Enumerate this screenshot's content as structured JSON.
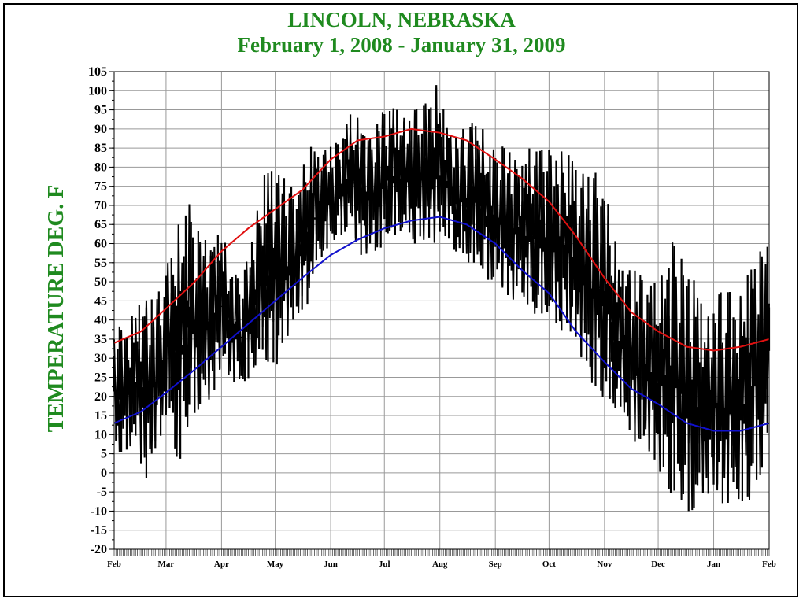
{
  "title_line1": "LINCOLN, NEBRASKA",
  "title_line2": "February 1, 2008 - January 31,  2009",
  "colors": {
    "title": "#1f8a1f",
    "max_normal": "#e01010",
    "min_normal": "#1010cc",
    "daily": "#000000",
    "grid": "#999999"
  },
  "chart_data": {
    "type": "line",
    "title": "LINCOLN, NEBRASKA",
    "subtitle": "February 1, 2008 - January 31,  2009",
    "ylabel": "TEMPERATURE DEG. F",
    "xlabel": "",
    "ylim": [
      -20,
      105
    ],
    "yticks": [
      -20,
      -15,
      -10,
      -5,
      0,
      5,
      10,
      15,
      20,
      25,
      30,
      35,
      40,
      45,
      50,
      55,
      60,
      65,
      70,
      75,
      80,
      85,
      90,
      95,
      100,
      105
    ],
    "xlim": [
      0,
      366
    ],
    "month_ticks": [
      {
        "label": "Feb",
        "day": 0
      },
      {
        "label": "Mar",
        "day": 29
      },
      {
        "label": "Apr",
        "day": 60
      },
      {
        "label": "May",
        "day": 90
      },
      {
        "label": "Jun",
        "day": 121
      },
      {
        "label": "Jul",
        "day": 151
      },
      {
        "label": "Aug",
        "day": 182
      },
      {
        "label": "Sep",
        "day": 213
      },
      {
        "label": "Oct",
        "day": 243
      },
      {
        "label": "Nov",
        "day": 274
      },
      {
        "label": "Dec",
        "day": 304
      },
      {
        "label": "Jan",
        "day": 335
      },
      {
        "label": "Feb",
        "day": 366
      }
    ],
    "grid": true,
    "series": [
      {
        "key": "max_normal",
        "x": [
          0,
          15,
          29,
          45,
          60,
          75,
          90,
          105,
          121,
          136,
          151,
          166,
          182,
          197,
          213,
          228,
          243,
          258,
          274,
          289,
          304,
          320,
          335,
          350,
          366
        ],
        "values": [
          34,
          37,
          43,
          50,
          58,
          64,
          69,
          74,
          82,
          87,
          88,
          90,
          89,
          87,
          82,
          77,
          71,
          62,
          51,
          42,
          37,
          33,
          32,
          33,
          35
        ]
      },
      {
        "key": "min_normal",
        "x": [
          0,
          15,
          29,
          45,
          60,
          75,
          90,
          105,
          121,
          136,
          151,
          166,
          182,
          197,
          213,
          228,
          243,
          258,
          274,
          289,
          304,
          320,
          335,
          350,
          366
        ],
        "values": [
          13,
          16,
          21,
          27,
          33,
          39,
          45,
          51,
          57,
          61,
          64,
          66,
          67,
          65,
          60,
          53,
          47,
          37,
          29,
          22,
          18,
          13,
          11,
          11,
          13
        ]
      },
      {
        "key": "daily_max",
        "x": [
          0,
          6,
          12,
          18,
          24,
          30,
          36,
          42,
          48,
          54,
          60,
          66,
          72,
          78,
          84,
          90,
          96,
          102,
          108,
          114,
          120,
          126,
          132,
          138,
          144,
          150,
          156,
          162,
          168,
          174,
          180,
          186,
          192,
          198,
          204,
          210,
          216,
          222,
          228,
          234,
          240,
          246,
          252,
          258,
          264,
          270,
          276,
          282,
          288,
          294,
          300,
          306,
          312,
          318,
          324,
          330,
          336,
          342,
          348,
          354,
          360,
          366
        ],
        "values": [
          40,
          38,
          43,
          47,
          46,
          55,
          65,
          71,
          62,
          61,
          64,
          53,
          51,
          64,
          78,
          81,
          77,
          73,
          86,
          84,
          85,
          87,
          94,
          93,
          87,
          96,
          96,
          93,
          95,
          97,
          102,
          92,
          88,
          92,
          93,
          84,
          86,
          84,
          81,
          87,
          86,
          83,
          85,
          80,
          78,
          79,
          72,
          55,
          54,
          52,
          49,
          52,
          62,
          55,
          53,
          40,
          46,
          49,
          44,
          52,
          60,
          59
        ]
      },
      {
        "key": "daily_min",
        "x": [
          0,
          6,
          12,
          18,
          24,
          30,
          36,
          42,
          48,
          54,
          60,
          66,
          72,
          78,
          84,
          90,
          96,
          102,
          108,
          114,
          120,
          126,
          132,
          138,
          144,
          150,
          156,
          162,
          168,
          174,
          180,
          186,
          192,
          198,
          204,
          210,
          216,
          222,
          228,
          234,
          240,
          246,
          252,
          258,
          264,
          270,
          276,
          282,
          288,
          294,
          300,
          306,
          312,
          318,
          324,
          330,
          336,
          342,
          348,
          354,
          360,
          366
        ],
        "values": [
          6,
          5,
          8,
          -3,
          7,
          15,
          1,
          14,
          17,
          19,
          27,
          24,
          22,
          27,
          30,
          27,
          35,
          40,
          44,
          55,
          59,
          62,
          64,
          57,
          57,
          59,
          62,
          63,
          60,
          61,
          60,
          62,
          56,
          55,
          53,
          50,
          49,
          45,
          47,
          40,
          42,
          38,
          37,
          35,
          25,
          22,
          17,
          17,
          10,
          6,
          5,
          -1,
          -6,
          -8,
          -12,
          -5,
          -7,
          -9,
          -7,
          -8,
          -3,
          10
        ]
      }
    ]
  }
}
